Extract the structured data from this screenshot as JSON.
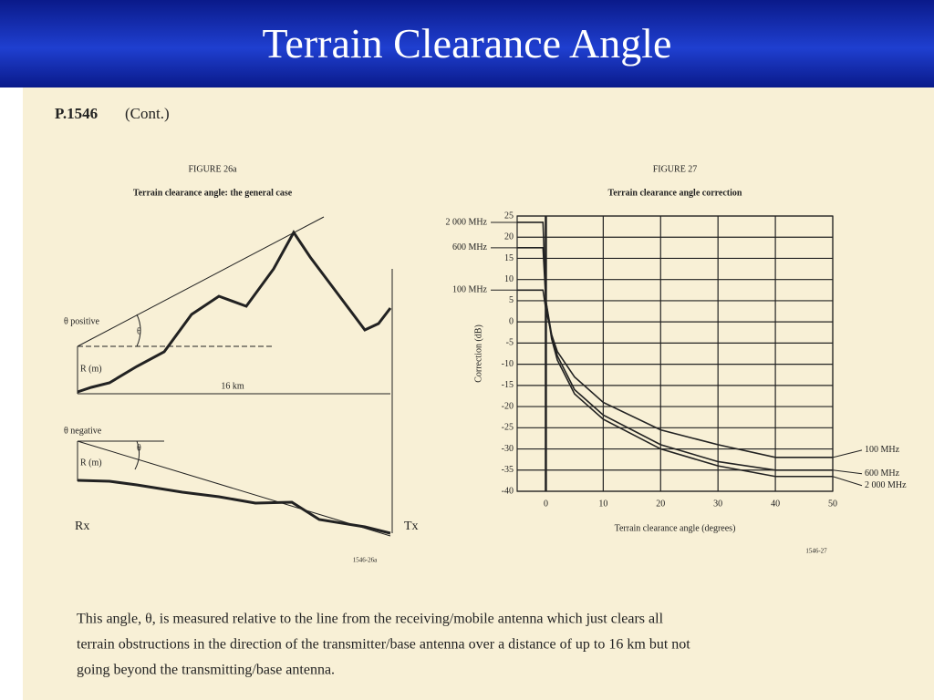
{
  "slide": {
    "title": "Terrain Clearance Angle"
  },
  "document": {
    "header": {
      "code": "P.1546",
      "note": "(Cont.)"
    },
    "paragraph": [
      "This angle, θ, is measured relative to the line from the receiving/mobile antenna which just clears all",
      "terrain obstructions in the direction of the transmitter/base antenna over a distance of up to 16 km but not",
      "going beyond the transmitting/base antenna."
    ]
  },
  "figure26a": {
    "title": "FIGURE 26a",
    "caption": "Terrain clearance angle: the general case",
    "labels": {
      "theta_positive": "θ positive",
      "theta_upper": "θ",
      "r_upper": "R (m)",
      "distance": "16 km",
      "theta_negative": "θ negative",
      "theta_lower": "θ",
      "r_lower": "R (m)",
      "rx": "Rx",
      "tx": "Tx",
      "code": "1546-26a"
    }
  },
  "chart_data": {
    "type": "line",
    "title": "FIGURE 27",
    "subtitle": "Terrain clearance angle correction",
    "x_label": "Terrain clearance angle (degrees)",
    "y_label": "Correction (dB)",
    "code": "1546-27",
    "x": [
      -5,
      -0.5,
      0,
      1,
      2,
      5,
      10,
      20,
      30,
      40,
      50
    ],
    "series": [
      {
        "name": "2 000 MHz",
        "color": "#222222",
        "values": [
          23.5,
          23.5,
          5,
          -4,
          -9,
          -17,
          -23,
          -30,
          -34,
          -36.5,
          -36.5
        ]
      },
      {
        "name": "600 MHz",
        "color": "#222222",
        "values": [
          17.5,
          17.5,
          5,
          -3,
          -8,
          -16,
          -22,
          -29,
          -33,
          -35,
          -35
        ]
      },
      {
        "name": "100 MHz",
        "color": "#222222",
        "values": [
          7.5,
          7.5,
          3,
          -3,
          -7,
          -13,
          -19,
          -25.5,
          -29,
          -32,
          -32
        ]
      }
    ],
    "xlim": [
      -5,
      50
    ],
    "xticks": [
      0,
      10,
      20,
      30,
      40,
      50
    ],
    "ylim": [
      -40,
      25
    ],
    "yticks": [
      -40,
      -35,
      -30,
      -25,
      -20,
      -15,
      -10,
      -5,
      0,
      5,
      10,
      15,
      20,
      25
    ],
    "grid": true
  }
}
